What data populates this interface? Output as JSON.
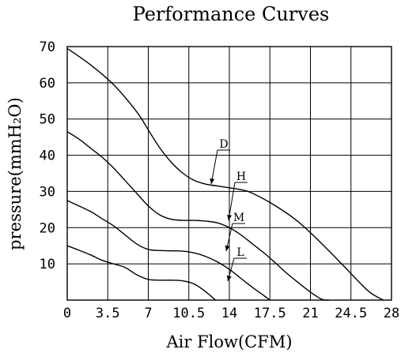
{
  "chart_data": {
    "type": "line",
    "title": "Performance Curves",
    "xlabel": "Air Flow(CFM)",
    "ylabel": "pressure(mmH₂O)",
    "xlim": [
      0,
      28
    ],
    "ylim": [
      0,
      70
    ],
    "x_ticks": [
      "0",
      "3.5",
      "7",
      "10.5",
      "14",
      "17.5",
      "21",
      "24.5",
      "28"
    ],
    "y_ticks": [
      "10",
      "20",
      "30",
      "40",
      "50",
      "60",
      "70"
    ],
    "grid": true,
    "series": [
      {
        "name": "D",
        "x": [
          0,
          2,
          4,
          6,
          7,
          8,
          9,
          10,
          11,
          12,
          13,
          14,
          15,
          16,
          18,
          20,
          22,
          24,
          26,
          27.3
        ],
        "y": [
          69.5,
          65,
          59.5,
          52,
          47,
          42,
          38,
          35,
          33,
          32,
          31.5,
          31,
          30.5,
          29.5,
          26,
          21.5,
          15.5,
          9,
          2.5,
          0
        ]
      },
      {
        "name": "H",
        "x": [
          0,
          1,
          2,
          3,
          4,
          5,
          6,
          7,
          8,
          9,
          10,
          11,
          12,
          13,
          14,
          15,
          16,
          17,
          18,
          19,
          20,
          21,
          22,
          22.6
        ],
        "y": [
          46.5,
          44.5,
          42,
          39.5,
          36.5,
          33,
          29.5,
          26,
          23.5,
          22.3,
          22,
          22,
          21.8,
          21.3,
          20,
          18,
          15.5,
          13,
          10.2,
          7.3,
          4.7,
          2.2,
          0.2,
          0
        ]
      },
      {
        "name": "M",
        "x": [
          0,
          1,
          2,
          3,
          4,
          5,
          6,
          7,
          8,
          9,
          10,
          11,
          12,
          13,
          14,
          15,
          16,
          17,
          17.5
        ],
        "y": [
          27.5,
          26,
          24.5,
          22.5,
          20.5,
          18,
          15.5,
          14,
          13.7,
          13.6,
          13.5,
          13,
          12,
          10.5,
          8.5,
          6,
          3.5,
          1.2,
          0
        ]
      },
      {
        "name": "L",
        "x": [
          0,
          1,
          2,
          3,
          4,
          5,
          6,
          7,
          8,
          9,
          10,
          11,
          12,
          12.8
        ],
        "y": [
          15,
          13.8,
          12.5,
          11,
          10,
          9,
          7,
          5.7,
          5.5,
          5.5,
          5.3,
          4.4,
          2.2,
          0
        ]
      }
    ],
    "annotations": [
      {
        "text": "D",
        "target": [
          9.5,
          32
        ]
      },
      {
        "text": "H",
        "target": [
          10,
          22
        ]
      },
      {
        "text": "M",
        "target": [
          10,
          13.5
        ]
      },
      {
        "text": "L",
        "target": [
          10,
          5.2
        ]
      }
    ]
  }
}
